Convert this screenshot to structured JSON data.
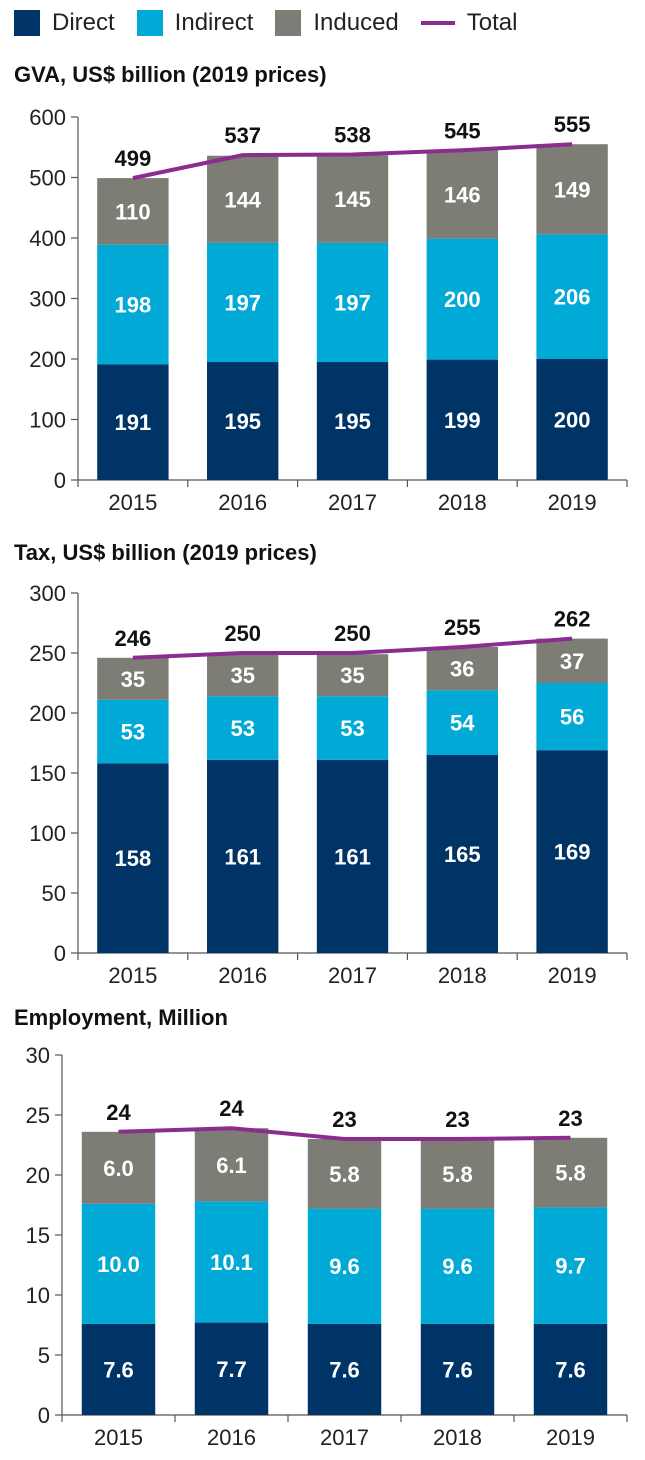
{
  "legend": [
    {
      "label": "Direct",
      "color": "#003366",
      "kind": "box"
    },
    {
      "label": "Indirect",
      "color": "#00a9d6",
      "kind": "box"
    },
    {
      "label": "Induced",
      "color": "#7d7c75",
      "kind": "box"
    },
    {
      "label": "Total",
      "color": "#8b2c8f",
      "kind": "line"
    }
  ],
  "chart_data": [
    {
      "type": "bar",
      "stacked": true,
      "title": "GVA, US$ billion (2019 prices)",
      "categories": [
        "2015",
        "2016",
        "2017",
        "2018",
        "2019"
      ],
      "ylim": [
        0,
        600
      ],
      "yticks": [
        "0",
        "100",
        "200",
        "300",
        "400",
        "500",
        "600"
      ],
      "series": [
        {
          "name": "Direct",
          "values": [
            191,
            195,
            195,
            199,
            200
          ],
          "labels": [
            "191",
            "195",
            "195",
            "199",
            "200"
          ]
        },
        {
          "name": "Indirect",
          "values": [
            198,
            197,
            197,
            200,
            206
          ],
          "labels": [
            "198",
            "197",
            "197",
            "200",
            "206"
          ]
        },
        {
          "name": "Induced",
          "values": [
            110,
            144,
            145,
            146,
            149
          ],
          "labels": [
            "110",
            "144",
            "145",
            "146",
            "149"
          ]
        }
      ],
      "total": {
        "name": "Total",
        "values": [
          499,
          537,
          538,
          545,
          555
        ],
        "labels": [
          "499",
          "537",
          "538",
          "545",
          "555"
        ]
      }
    },
    {
      "type": "bar",
      "stacked": true,
      "title": "Tax, US$ billion (2019 prices)",
      "categories": [
        "2015",
        "2016",
        "2017",
        "2018",
        "2019"
      ],
      "ylim": [
        0,
        300
      ],
      "yticks": [
        "0",
        "50",
        "100",
        "150",
        "200",
        "250",
        "300"
      ],
      "series": [
        {
          "name": "Direct",
          "values": [
            158,
            161,
            161,
            165,
            169
          ],
          "labels": [
            "158",
            "161",
            "161",
            "165",
            "169"
          ]
        },
        {
          "name": "Indirect",
          "values": [
            53,
            53,
            53,
            54,
            56
          ],
          "labels": [
            "53",
            "53",
            "53",
            "54",
            "56"
          ]
        },
        {
          "name": "Induced",
          "values": [
            35,
            35,
            35,
            36,
            37
          ],
          "labels": [
            "35",
            "35",
            "35",
            "36",
            "37"
          ]
        }
      ],
      "total": {
        "name": "Total",
        "values": [
          246,
          250,
          250,
          255,
          262
        ],
        "labels": [
          "246",
          "250",
          "250",
          "255",
          "262"
        ]
      }
    },
    {
      "type": "bar",
      "stacked": true,
      "title": "Employment, Million",
      "categories": [
        "2015",
        "2016",
        "2017",
        "2018",
        "2019"
      ],
      "ylim": [
        0,
        30
      ],
      "yticks": [
        "0",
        "5",
        "10",
        "15",
        "20",
        "25",
        "30"
      ],
      "series": [
        {
          "name": "Direct",
          "values": [
            7.6,
            7.7,
            7.6,
            7.6,
            7.6
          ],
          "labels": [
            "7.6",
            "7.7",
            "7.6",
            "7.6",
            "7.6"
          ]
        },
        {
          "name": "Indirect",
          "values": [
            10.0,
            10.1,
            9.6,
            9.6,
            9.7
          ],
          "labels": [
            "10.0",
            "10.1",
            "9.6",
            "9.6",
            "9.7"
          ]
        },
        {
          "name": "Induced",
          "values": [
            6.0,
            6.1,
            5.8,
            5.8,
            5.8
          ],
          "labels": [
            "6.0",
            "6.1",
            "5.8",
            "5.8",
            "5.8"
          ]
        }
      ],
      "total": {
        "name": "Total",
        "values": [
          23.6,
          23.9,
          23.0,
          23.0,
          23.1
        ],
        "labels": [
          "24",
          "24",
          "23",
          "23",
          "23"
        ]
      }
    }
  ]
}
